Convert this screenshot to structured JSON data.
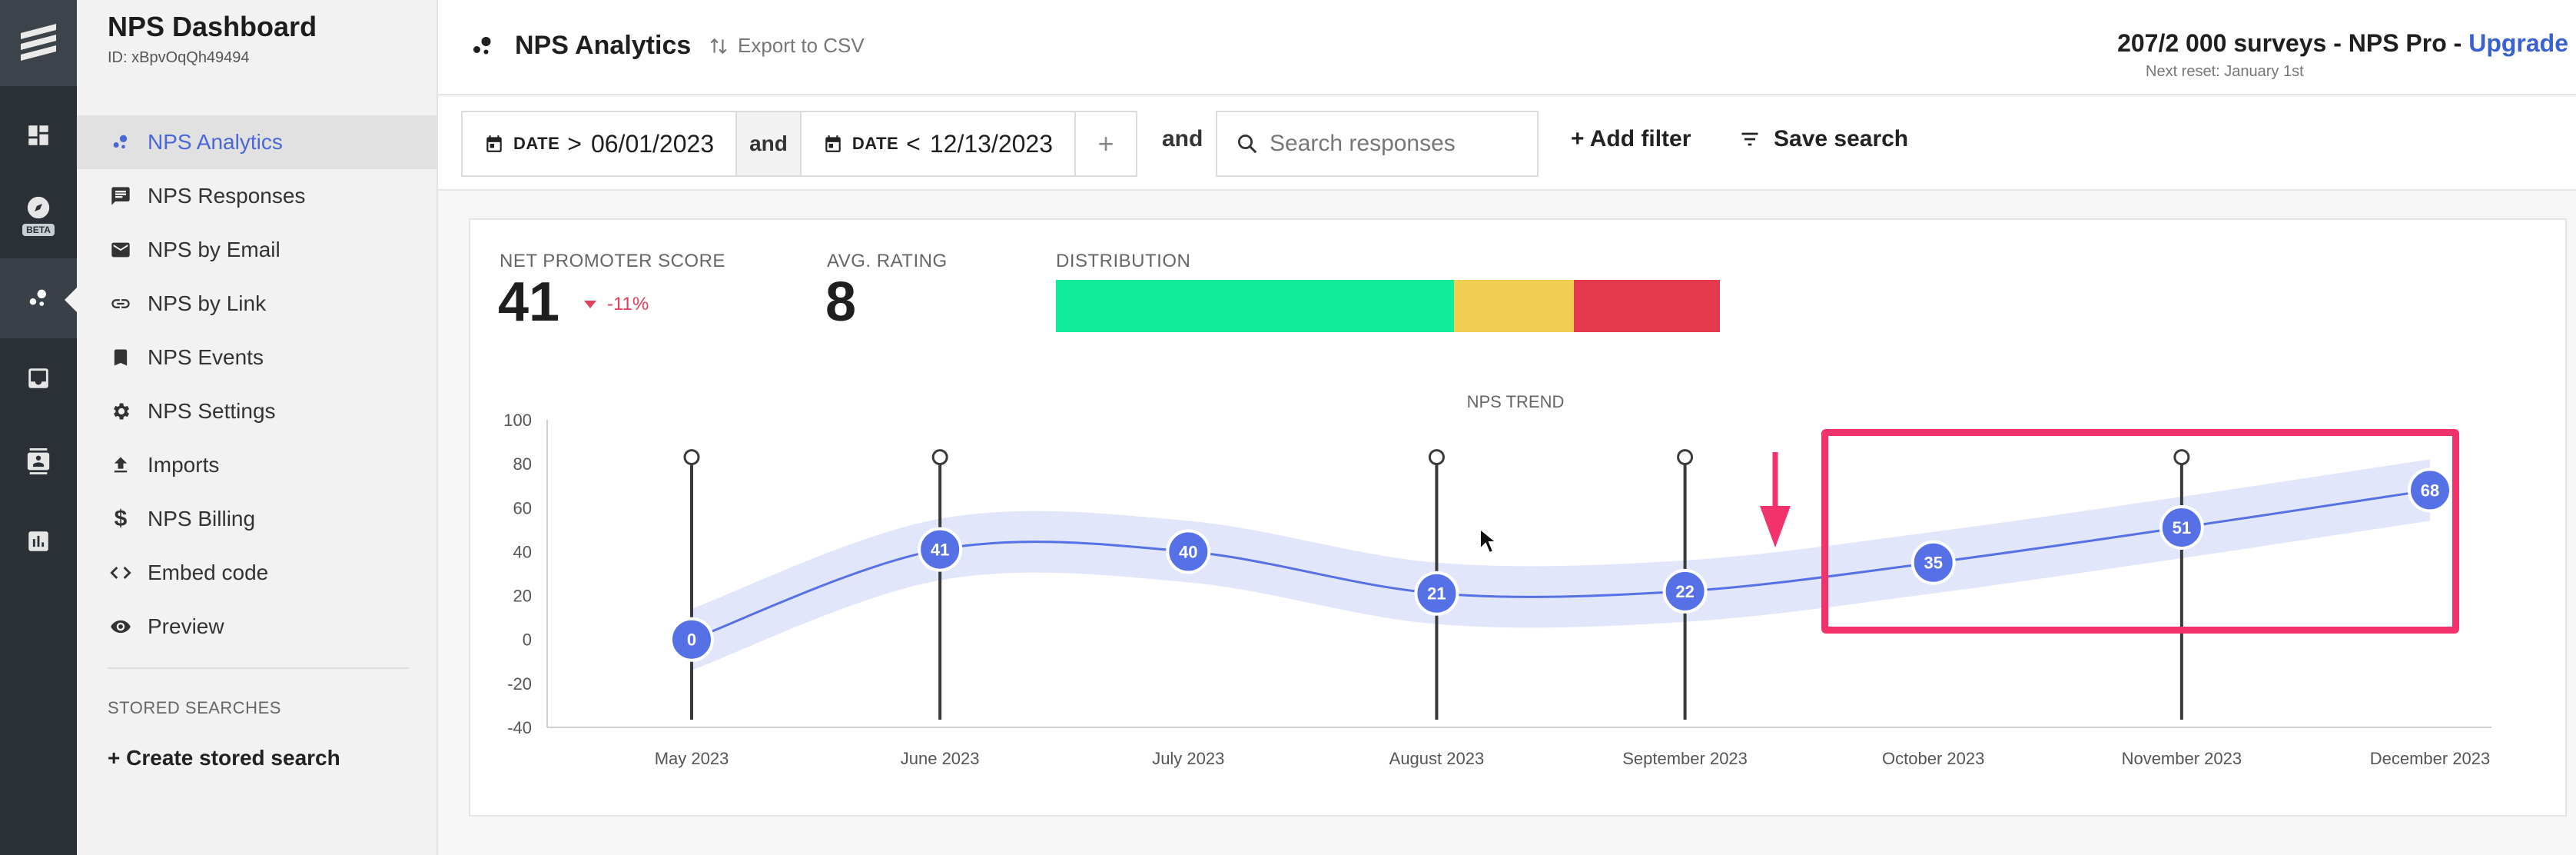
{
  "rail": {
    "beta_label": "BETA"
  },
  "sidebar": {
    "title": "NPS Dashboard",
    "id_text": "ID: xBpvOqQh49494",
    "items": [
      {
        "label": "NPS Analytics",
        "icon": "analytics-icon",
        "active": true
      },
      {
        "label": "NPS Responses",
        "icon": "chat-icon"
      },
      {
        "label": "NPS by Email",
        "icon": "email-icon"
      },
      {
        "label": "NPS by Link",
        "icon": "link-icon"
      },
      {
        "label": "NPS Events",
        "icon": "bookmark-icon"
      },
      {
        "label": "NPS Settings",
        "icon": "gear-icon"
      },
      {
        "label": "Imports",
        "icon": "upload-icon"
      },
      {
        "label": "NPS Billing",
        "icon": "dollar-icon"
      },
      {
        "label": "Embed code",
        "icon": "code-icon"
      },
      {
        "label": "Preview",
        "icon": "eye-icon"
      }
    ],
    "stored_searches_label": "STORED SEARCHES",
    "create_stored_label": "+ Create stored search"
  },
  "header": {
    "title": "NPS Analytics",
    "export_label": "Export to CSV",
    "usage_text": "207/2 000 surveys - NPS Pro - ",
    "upgrade_label": "Upgrade",
    "reset_text": "Next reset: January 1st"
  },
  "filters": {
    "date1_label": "DATE",
    "date1_op": ">",
    "date1_value": "06/01/2023",
    "and_inner": "and",
    "date2_label": "DATE",
    "date2_op": "<",
    "date2_value": "12/13/2023",
    "plus_label": "+",
    "and_outer": "and",
    "search_placeholder": "Search responses",
    "add_filter_label": "+ Add filter",
    "save_search_label": "Save search"
  },
  "stats": {
    "nps_label": "NET PROMOTER SCORE",
    "nps_value": "41",
    "nps_delta": "-11%",
    "avg_label": "AVG. RATING",
    "avg_value": "8",
    "dist_label": "DISTRIBUTION",
    "distribution": [
      {
        "fraction": 0.6,
        "color": "#12ed9b"
      },
      {
        "fraction": 0.18,
        "color": "#f1cd52"
      },
      {
        "fraction": 0.22,
        "color": "#e53a4e"
      }
    ]
  },
  "chart_data": {
    "type": "line",
    "title": "NPS TREND",
    "categories": [
      "May 2023",
      "June 2023",
      "July 2023",
      "August 2023",
      "September 2023",
      "October 2023",
      "November 2023",
      "December 2023"
    ],
    "values": [
      0,
      41,
      40,
      21,
      22,
      35,
      51,
      68
    ],
    "ylim": [
      -40,
      100
    ],
    "yticks": [
      100,
      80,
      60,
      40,
      20,
      0,
      -20,
      -40
    ],
    "event_markers": [
      "May 2023",
      "June 2023",
      "August 2023",
      "September 2023",
      "November 2023"
    ],
    "event_marker_value": 83,
    "band_halfwidth": 14,
    "line_color": "#5670e6",
    "band_color": "#dfe3fa"
  }
}
